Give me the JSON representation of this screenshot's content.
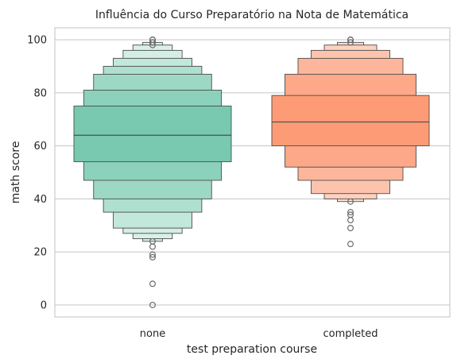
{
  "chart_data": {
    "type": "boxen",
    "title": "Influência do Curso Preparatório na Nota de Matemática",
    "xlabel": "test preparation course",
    "ylabel": "math score",
    "ylim": [
      -4.5,
      104.5
    ],
    "yticks": [
      0,
      20,
      40,
      60,
      80,
      100
    ],
    "ytick_labels": [
      "0",
      "20",
      "40",
      "60",
      "80",
      "100"
    ],
    "grid": "horizontal",
    "categories": [
      "none",
      "completed"
    ],
    "series": [
      {
        "category": "none",
        "color": "#66c2a5",
        "median": 64,
        "letter_values": [
          [
            54,
            75
          ],
          [
            47,
            81
          ],
          [
            40,
            87
          ],
          [
            35,
            90
          ],
          [
            29,
            93
          ],
          [
            27,
            96
          ],
          [
            25,
            98
          ],
          [
            24,
            99
          ]
        ],
        "outliers": [
          0,
          8,
          18,
          19,
          22,
          24,
          98,
          99,
          99,
          100,
          100
        ]
      },
      {
        "category": "completed",
        "color": "#fc8d62",
        "median": 69,
        "letter_values": [
          [
            60,
            79
          ],
          [
            52,
            87
          ],
          [
            47,
            93
          ],
          [
            42,
            96
          ],
          [
            40,
            98
          ],
          [
            39,
            99
          ]
        ],
        "outliers": [
          23,
          29,
          32,
          34,
          35,
          39,
          99,
          100,
          100
        ]
      }
    ]
  }
}
